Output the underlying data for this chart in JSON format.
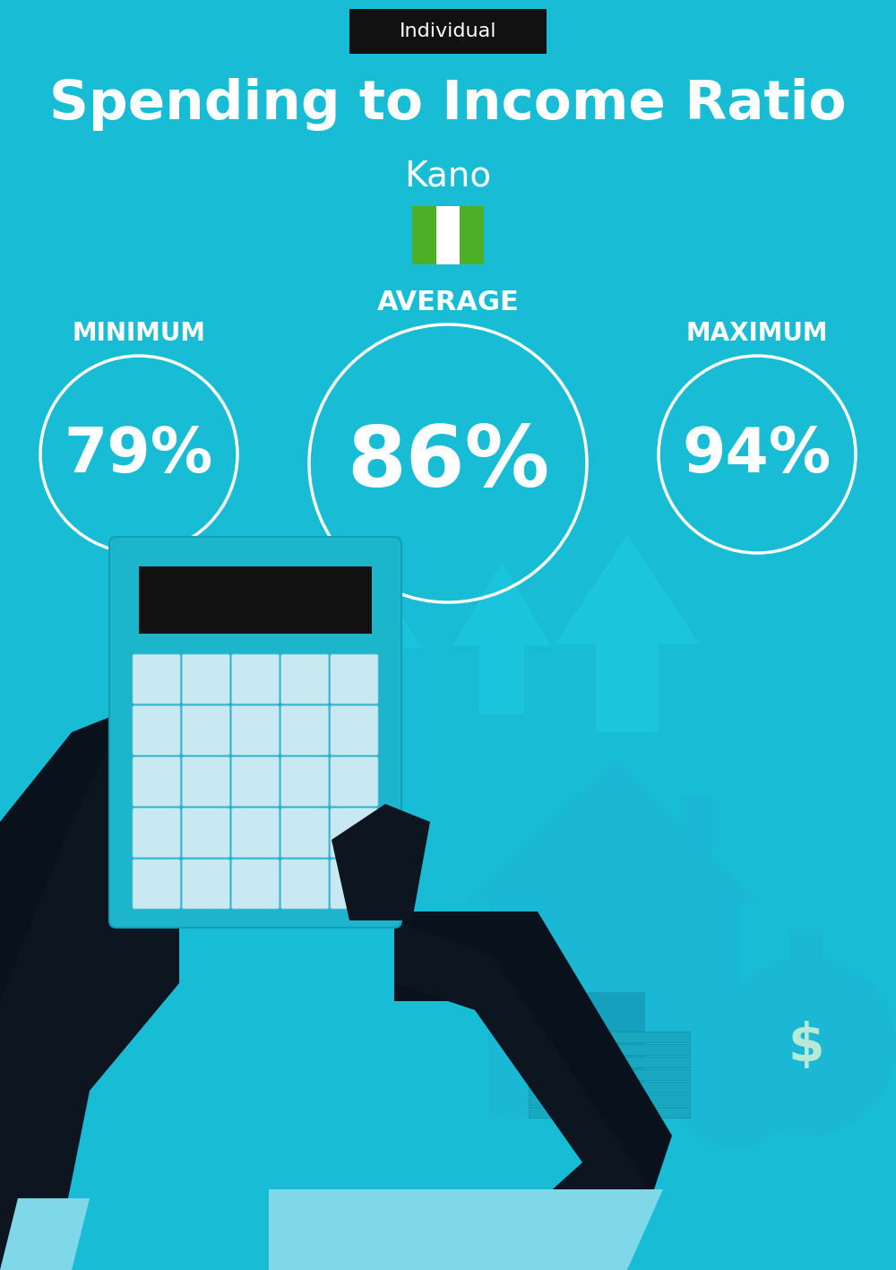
{
  "bg_color": "#18BCD4",
  "title": "Spending to Income Ratio",
  "subtitle": "Kano",
  "tag_label": "Individual",
  "tag_bg": "#111111",
  "tag_text_color": "#ffffff",
  "min_label": "MINIMUM",
  "avg_label": "AVERAGE",
  "max_label": "MAXIMUM",
  "min_value": "79%",
  "avg_value": "86%",
  "max_value": "94%",
  "circle_color": "#ffffff",
  "text_color": "#ffffff",
  "title_fontsize": 44,
  "subtitle_fontsize": 28,
  "avg_label_fontsize": 22,
  "min_max_label_fontsize": 20,
  "min_fontsize": 50,
  "avg_fontsize": 68,
  "max_fontsize": 50,
  "flag_green": "#4CAF28",
  "flag_white": "#ffffff",
  "arrow_color": "#1ECFE6",
  "house_color": "#1AB8D5",
  "calc_body_color": "#1CB5CC",
  "calc_screen_color": "#111111",
  "calc_btn_color": "#C8E8F2",
  "hand_color": "#0D1520",
  "sleeve_color": "#050E18",
  "cuff_color": "#7ED8E8",
  "money_color": "#18A8C0",
  "bag_dollar_color": "#B8E8D8",
  "fig_width": 10.0,
  "fig_height": 14.17
}
